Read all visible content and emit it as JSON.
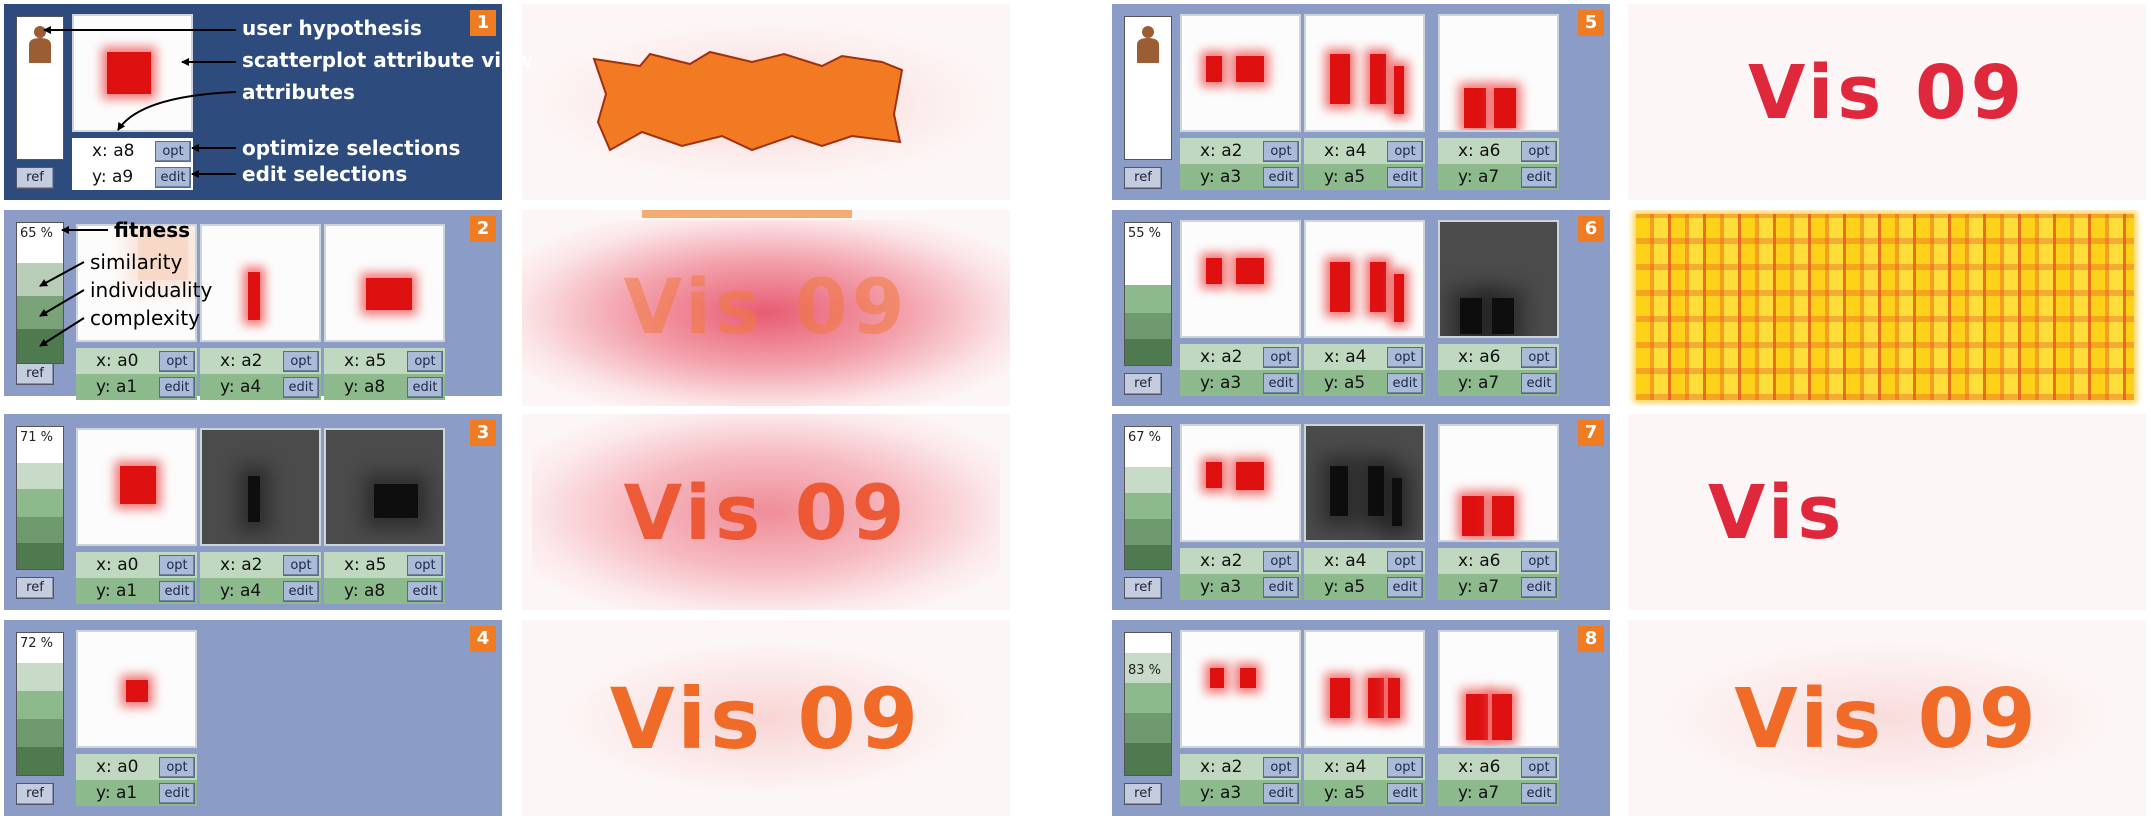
{
  "shared": {
    "ref_label": "ref",
    "opt_label": "opt",
    "edit_label": "edit"
  },
  "annotations": {
    "user_hypothesis": "user hypothesis",
    "scatterplot_view": "scatterplot attribute view",
    "attributes": "attributes",
    "optimize_selections": "optimize selections",
    "edit_selections": "edit selections",
    "fitness": "fitness",
    "similarity": "similarity",
    "individuality": "individuality",
    "complexity": "complexity"
  },
  "panels": [
    {
      "number": "1",
      "fitness": "",
      "views": [
        {
          "x": "x: a8",
          "y": "y: a9"
        }
      ]
    },
    {
      "number": "2",
      "fitness": "65 %",
      "views": [
        {
          "x": "x: a0",
          "y": "y: a1"
        },
        {
          "x": "x: a2",
          "y": "y: a4"
        },
        {
          "x": "x: a5",
          "y": "y: a8"
        }
      ]
    },
    {
      "number": "3",
      "fitness": "71 %",
      "views": [
        {
          "x": "x: a0",
          "y": "y: a1"
        },
        {
          "x": "x: a2",
          "y": "y: a4"
        },
        {
          "x": "x: a5",
          "y": "y: a8"
        }
      ]
    },
    {
      "number": "4",
      "fitness": "72 %",
      "views": [
        {
          "x": "x: a0",
          "y": "y: a1"
        }
      ]
    },
    {
      "number": "5",
      "fitness": "",
      "views": [
        {
          "x": "x: a2",
          "y": "y: a3"
        },
        {
          "x": "x: a4",
          "y": "y: a5"
        },
        {
          "x": "x: a6",
          "y": "y: a7"
        }
      ]
    },
    {
      "number": "6",
      "fitness": "55 %",
      "views": [
        {
          "x": "x: a2",
          "y": "y: a3"
        },
        {
          "x": "x: a4",
          "y": "y: a5"
        },
        {
          "x": "x: a6",
          "y": "y: a7"
        }
      ]
    },
    {
      "number": "7",
      "fitness": "67 %",
      "views": [
        {
          "x": "x: a2",
          "y": "y: a3"
        },
        {
          "x": "x: a4",
          "y": "y: a5"
        },
        {
          "x": "x: a6",
          "y": "y: a7"
        }
      ]
    },
    {
      "number": "8",
      "fitness": "83 %",
      "views": [
        {
          "x": "x: a2",
          "y": "y: a3"
        },
        {
          "x": "x: a4",
          "y": "y: a5"
        },
        {
          "x": "x: a6",
          "y": "y: a7"
        }
      ]
    }
  ],
  "renders": [
    {
      "text": "",
      "style": "orange-blob"
    },
    {
      "text": "Vis 09",
      "style": "noisy-faint"
    },
    {
      "text": "Vis 09",
      "style": "noisy"
    },
    {
      "text": "Vis 09",
      "style": "clean-orange"
    },
    {
      "text": "Vis 09",
      "style": "clean-red"
    },
    {
      "text": "",
      "style": "yellow-block"
    },
    {
      "text": "Vis",
      "style": "clean-red"
    },
    {
      "text": "Vis 09",
      "style": "clean-orange"
    }
  ],
  "colors": {
    "panel": "#8b9dc6",
    "panel_dark": "#2d4b7c",
    "badge": "#ef7b22",
    "row_x": "#bfd8bf",
    "row_y": "#8dba8d",
    "selection_red": "#de1010"
  }
}
